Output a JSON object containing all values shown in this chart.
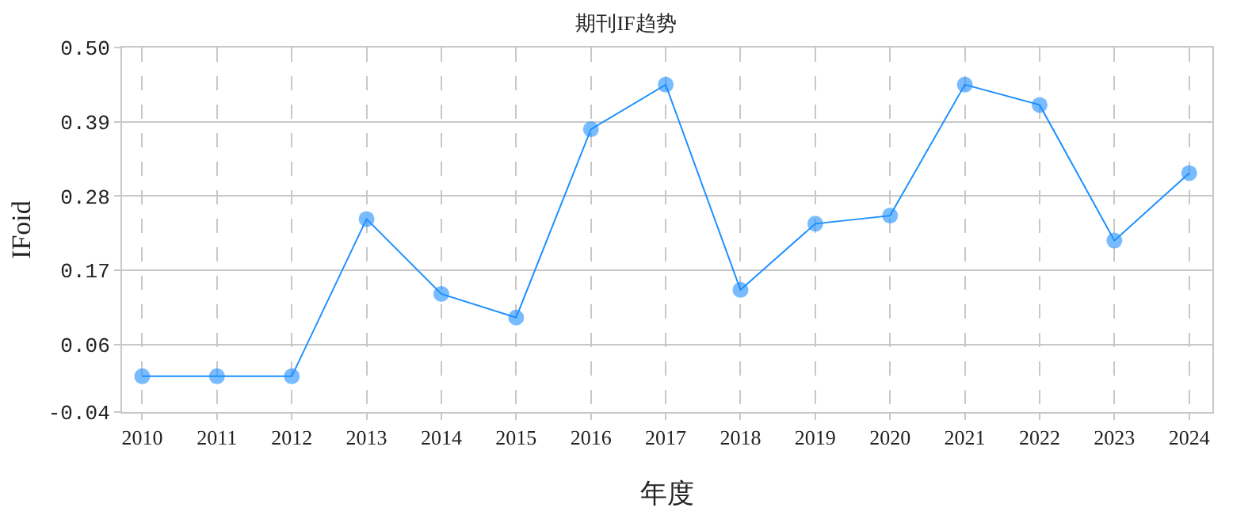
{
  "chart_data": {
    "type": "line",
    "title": "期刊IF趋势",
    "xlabel": "年度",
    "ylabel": "IFoid",
    "categories": [
      "2010",
      "2011",
      "2012",
      "2013",
      "2014",
      "2015",
      "2016",
      "2017",
      "2018",
      "2019",
      "2020",
      "2021",
      "2022",
      "2023",
      "2024"
    ],
    "series": [
      {
        "color": "#1e90ff",
        "values": [
          0.013,
          0.013,
          0.013,
          0.246,
          0.135,
          0.1,
          0.379,
          0.445,
          0.141,
          0.239,
          0.251,
          0.445,
          0.415,
          0.214,
          0.314
        ]
      }
    ],
    "ylim": [
      -0.04,
      0.5
    ],
    "yticks": [
      {
        "value": -0.04,
        "label": "-0.04"
      },
      {
        "value": 0.06,
        "label": "0.06"
      },
      {
        "value": 0.17,
        "label": "0.17"
      },
      {
        "value": 0.28,
        "label": "0.28"
      },
      {
        "value": 0.39,
        "label": "0.39"
      },
      {
        "value": 0.5,
        "label": "0.50"
      }
    ],
    "grid": true,
    "marker": "circle",
    "line_style": "solid"
  }
}
